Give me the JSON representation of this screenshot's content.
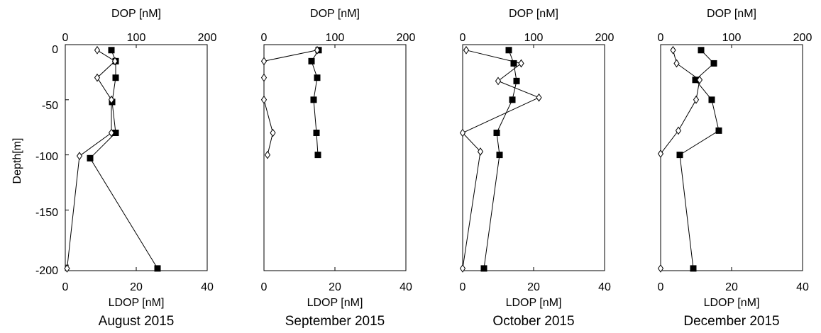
{
  "chart_data": [
    {
      "type": "line",
      "title": "August 2015",
      "ylabel": "Depth[m]",
      "ylim": [
        -205,
        0
      ],
      "y_ticks": [
        "0",
        "-50",
        "-100",
        "-150",
        "-200"
      ],
      "top_axis": {
        "label": "DOP [nM]",
        "range": [
          0,
          200
        ],
        "ticks": [
          "0",
          "100",
          "200"
        ]
      },
      "bottom_axis": {
        "label": "LDOP [nM]",
        "range": [
          0,
          40
        ],
        "ticks": [
          "0",
          "20",
          "40"
        ]
      },
      "series": [
        {
          "axis": "top",
          "marker": "filled-square",
          "points": [
            [
              65,
              -5
            ],
            [
              71,
              -15
            ],
            [
              71,
              -30
            ],
            [
              66,
              -52
            ],
            [
              71,
              -80
            ],
            [
              35,
              -103
            ],
            [
              130,
              -203
            ]
          ]
        },
        {
          "axis": "bottom",
          "marker": "open-diamond",
          "points": [
            [
              9,
              -5
            ],
            [
              14,
              -15
            ],
            [
              9,
              -30
            ],
            [
              13,
              -50
            ],
            [
              13,
              -80
            ],
            [
              4,
              -101
            ],
            [
              0.5,
              -203
            ]
          ]
        }
      ]
    },
    {
      "type": "line",
      "title": "September 2015",
      "ylim": [
        -205,
        0
      ],
      "top_axis": {
        "label": "DOP [nM]",
        "range": [
          0,
          200
        ],
        "ticks": [
          "0",
          "100",
          "200"
        ]
      },
      "bottom_axis": {
        "label": "LDOP [nM]",
        "range": [
          0,
          40
        ],
        "ticks": [
          "0",
          "20",
          "40"
        ]
      },
      "series": [
        {
          "axis": "top",
          "marker": "filled-square",
          "points": [
            [
              77,
              -5
            ],
            [
              67,
              -15
            ],
            [
              75,
              -30
            ],
            [
              70,
              -50
            ],
            [
              74,
              -80
            ],
            [
              76,
              -100
            ]
          ]
        },
        {
          "axis": "bottom",
          "marker": "open-diamond",
          "points": [
            [
              15,
              -5
            ],
            [
              0,
              -15
            ],
            [
              0,
              -30
            ],
            [
              0,
              -50
            ],
            [
              2.5,
              -80
            ],
            [
              1,
              -100
            ]
          ]
        }
      ]
    },
    {
      "type": "line",
      "title": "October 2015",
      "ylim": [
        -205,
        0
      ],
      "top_axis": {
        "label": "DOP [nM]",
        "range": [
          0,
          200
        ],
        "ticks": [
          "0",
          "100",
          "200"
        ]
      },
      "bottom_axis": {
        "label": "LDOP [nM]",
        "range": [
          0,
          40
        ],
        "ticks": [
          "0",
          "20",
          "40"
        ]
      },
      "series": [
        {
          "axis": "top",
          "marker": "filled-square",
          "points": [
            [
              65,
              -5
            ],
            [
              72,
              -17
            ],
            [
              76,
              -33
            ],
            [
              70,
              -50
            ],
            [
              48,
              -80
            ],
            [
              52,
              -100
            ],
            [
              30,
              -203
            ]
          ]
        },
        {
          "axis": "bottom",
          "marker": "open-diamond",
          "points": [
            [
              1,
              -5
            ],
            [
              16.5,
              -17
            ],
            [
              10,
              -33
            ],
            [
              21.5,
              -48
            ],
            [
              0,
              -80
            ],
            [
              5,
              -97
            ],
            [
              0,
              -203
            ]
          ]
        }
      ]
    },
    {
      "type": "line",
      "title": "December 2015",
      "ylim": [
        -205,
        0
      ],
      "top_axis": {
        "label": "DOP [nM]",
        "range": [
          0,
          200
        ],
        "ticks": [
          "0",
          "100",
          "200"
        ]
      },
      "bottom_axis": {
        "label": "LDOP [nM]",
        "range": [
          0,
          40
        ],
        "ticks": [
          "0",
          "20",
          "40"
        ]
      },
      "series": [
        {
          "axis": "top",
          "marker": "filled-square",
          "points": [
            [
              57,
              -5
            ],
            [
              75,
              -17
            ],
            [
              49,
              -32
            ],
            [
              72,
              -50
            ],
            [
              82,
              -78
            ],
            [
              27,
              -100
            ],
            [
              46,
              -203
            ]
          ]
        },
        {
          "axis": "bottom",
          "marker": "open-diamond",
          "points": [
            [
              3.5,
              -5
            ],
            [
              4.5,
              -17
            ],
            [
              11,
              -32
            ],
            [
              10,
              -50
            ],
            [
              5,
              -78
            ],
            [
              0,
              -99
            ],
            [
              0,
              -203
            ]
          ]
        }
      ]
    }
  ]
}
